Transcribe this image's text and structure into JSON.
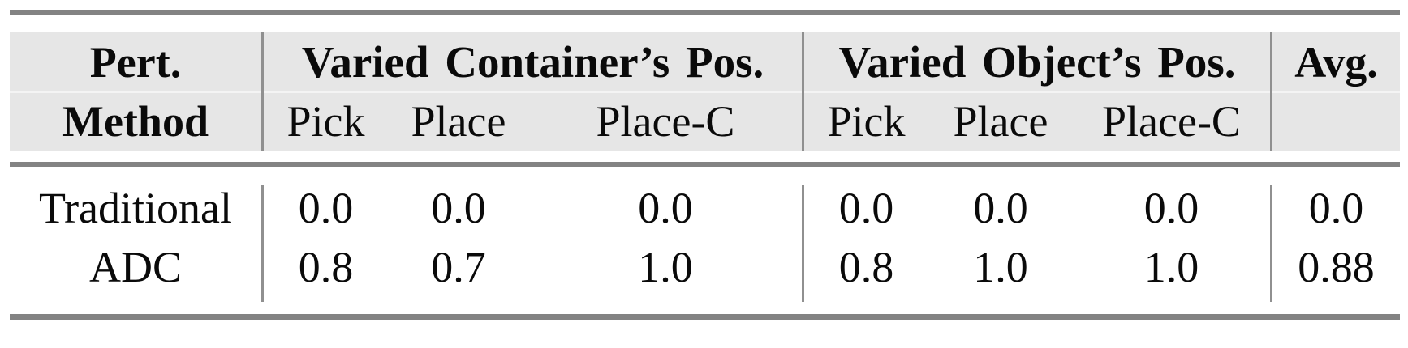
{
  "table": {
    "header": {
      "method_col": {
        "line1": "Pert.",
        "line2": "Method"
      },
      "groups": [
        {
          "title": "Varied Container’s Pos.",
          "subcols": [
            "Pick",
            "Place",
            "Place-C"
          ]
        },
        {
          "title": "Varied Object’s Pos.",
          "subcols": [
            "Pick",
            "Place",
            "Place-C"
          ]
        }
      ],
      "avg_col": "Avg."
    },
    "rows": [
      {
        "method": "Traditional",
        "g1": [
          "0.0",
          "0.0",
          "0.0"
        ],
        "g2": [
          "0.0",
          "0.0",
          "0.0"
        ],
        "avg": "0.0"
      },
      {
        "method": "ADC",
        "g1": [
          "0.8",
          "0.7",
          "1.0"
        ],
        "g2": [
          "0.8",
          "1.0",
          "1.0"
        ],
        "avg": "0.88"
      }
    ],
    "colors": {
      "header_bg": "#e6e6e6",
      "rule_gray": "#838383",
      "separator_gray": "#909090",
      "text": "#0a0a0a",
      "page_bg": "#ffffff"
    }
  },
  "chart_data": {
    "type": "table",
    "columns": [
      "Pert. Method",
      "Varied Container’s Pos. — Pick",
      "Varied Container’s Pos. — Place",
      "Varied Container’s Pos. — Place-C",
      "Varied Object’s Pos. — Pick",
      "Varied Object’s Pos. — Place",
      "Varied Object’s Pos. — Place-C",
      "Avg."
    ],
    "rows": [
      [
        "Traditional",
        0.0,
        0.0,
        0.0,
        0.0,
        0.0,
        0.0,
        0.0
      ],
      [
        "ADC",
        0.8,
        0.7,
        1.0,
        0.8,
        1.0,
        1.0,
        0.88
      ]
    ]
  }
}
